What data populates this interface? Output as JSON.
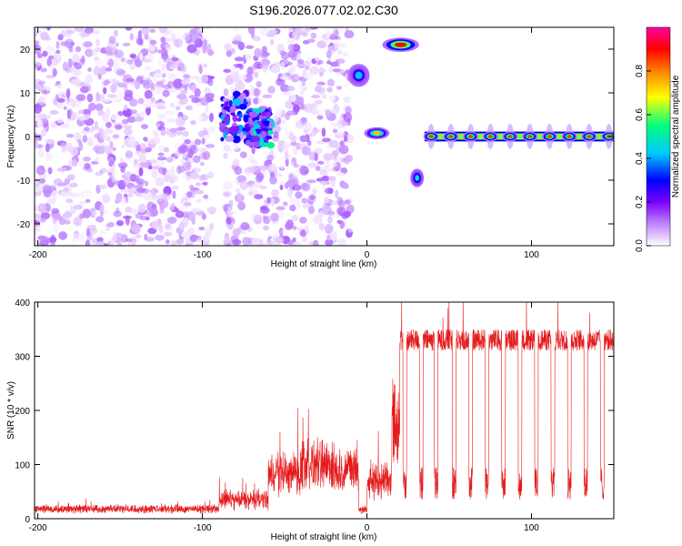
{
  "chart_data": [
    {
      "type": "heatmap",
      "title": "S196.2026.077.02.02.C30",
      "xlabel": "Height of straight line (km)",
      "ylabel": "Frequency (Hz)",
      "xlim": [
        -202,
        150
      ],
      "ylim": [
        -25,
        25
      ],
      "xticks": [
        -200,
        -100,
        0,
        100
      ],
      "xtick_labels": [
        "-200",
        "-100",
        "0",
        "100"
      ],
      "yticks": [
        -20,
        -10,
        0,
        10,
        20
      ],
      "ytick_labels": [
        "-20",
        "-10",
        "0",
        "10",
        "20"
      ],
      "colorbar": {
        "label": "Normalized spectral amplitude",
        "range": [
          0,
          1
        ],
        "ticks": [
          0.0,
          0.2,
          0.4,
          0.6,
          0.8
        ],
        "tick_labels": [
          "0.0",
          "0.2",
          "0.4",
          "0.6",
          "0.8"
        ],
        "colors": [
          "#ffffff",
          "#e6ccff",
          "#b06cff",
          "#7b00ff",
          "#0000ff",
          "#00c8ff",
          "#00ff80",
          "#ffff00",
          "#ff8000",
          "#ff0000",
          "#ff00a0"
        ]
      },
      "regions": [
        {
          "name": "noise",
          "x": [
            -202,
            -10
          ],
          "y": [
            -25,
            25
          ],
          "amplitude": 0.12
        },
        {
          "name": "gap-1",
          "x": [
            -94,
            -86
          ],
          "y": [
            -25,
            25
          ],
          "amplitude": 0.0
        },
        {
          "name": "gap-2",
          "x": [
            -10,
            0
          ],
          "y": [
            -25,
            25
          ],
          "amplitude": 0.0
        },
        {
          "name": "cluster-a",
          "x": [
            -88,
            -70
          ],
          "y": [
            -2,
            10
          ],
          "amplitude": 0.35
        },
        {
          "name": "cluster-b",
          "x": [
            -70,
            -58
          ],
          "y": [
            -2,
            6
          ],
          "amplitude": 0.45
        }
      ],
      "features": [
        {
          "x": [
            -10,
            0
          ],
          "y": [
            12,
            16
          ],
          "amplitude": 0.5
        },
        {
          "x": [
            0,
            12
          ],
          "y": [
            0,
            1.5
          ],
          "amplitude": 0.75
        },
        {
          "x": [
            11,
            30
          ],
          "y": [
            20,
            22
          ],
          "amplitude": 0.9
        },
        {
          "x": [
            28,
            33
          ],
          "y": [
            -11,
            -8
          ],
          "amplitude": 0.55
        },
        {
          "x": [
            35,
            150
          ],
          "y": [
            -0.5,
            0.5
          ],
          "amplitude": 0.85,
          "periodic_spacing": 12
        }
      ]
    },
    {
      "type": "line",
      "xlabel": "Height of straight line (km)",
      "ylabel": "SNR (10 * v/v)",
      "xlim": [
        -202,
        150
      ],
      "ylim": [
        0,
        400
      ],
      "xticks": [
        -200,
        -100,
        0,
        100
      ],
      "xtick_labels": [
        "-200",
        "-100",
        "0",
        "100"
      ],
      "yticks": [
        0,
        100,
        200,
        300,
        400
      ],
      "ytick_labels": [
        "0",
        "100",
        "200",
        "300",
        "400"
      ],
      "line_color": "#e41a1c",
      "series": [
        {
          "name": "SNR",
          "segments": [
            {
              "x": [
                -202,
                -90
              ],
              "base": 18,
              "noise": 14
            },
            {
              "x": [
                -90,
                -60
              ],
              "base": 30,
              "noise": 45
            },
            {
              "x": [
                -60,
                -40
              ],
              "base": 70,
              "noise": 110
            },
            {
              "x": [
                -40,
                -20
              ],
              "base": 90,
              "noise": 120
            },
            {
              "x": [
                -20,
                -5
              ],
              "base": 80,
              "noise": 100
            },
            {
              "x": [
                -5,
                0
              ],
              "base": 15,
              "noise": 20
            },
            {
              "x": [
                0,
                15
              ],
              "base": 60,
              "noise": 100
            },
            {
              "x": [
                15,
                20
              ],
              "base": 200,
              "noise": 60
            },
            {
              "x": [
                20,
                150
              ],
              "base": 330,
              "noise": 40
            }
          ],
          "dip_positions": [
            23,
            33,
            42,
            53,
            63,
            73,
            83,
            93,
            103,
            113,
            123,
            133,
            143
          ],
          "dip_level": 55
        }
      ]
    }
  ]
}
